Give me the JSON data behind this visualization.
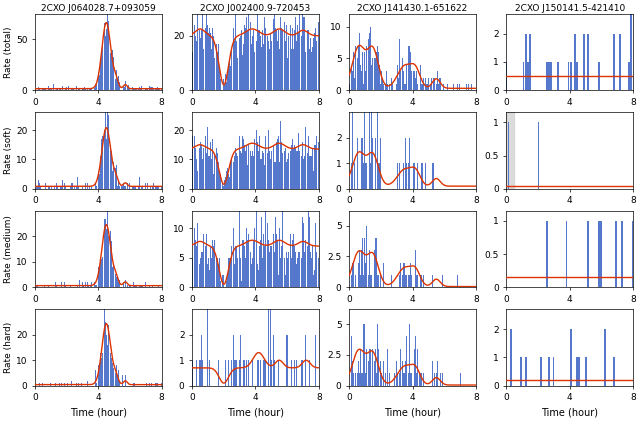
{
  "col_titles": [
    "2CXO J064028.7+093059",
    "2CXO J002400.9-720453",
    "2CXO J141430.1-651622",
    "2CXO J150141.5-421410"
  ],
  "row_labels": [
    "Rate (total)",
    "Rate (soft)",
    "Rate (medium)",
    "Rate (hard)"
  ],
  "xlabel": "Time (hour)",
  "bar_color": "#5577cc",
  "line_color": "#dd3300",
  "xlim": [
    0,
    8
  ],
  "ytick_labels": [
    [
      [
        0,
        50
      ],
      [
        0,
        20
      ],
      [
        0,
        5,
        10
      ],
      [
        0,
        1,
        2
      ]
    ],
    [
      [
        0,
        10,
        20
      ],
      [
        0,
        10,
        20
      ],
      [
        0,
        1,
        2
      ],
      [
        0.0,
        0.5,
        1.0
      ]
    ],
    [
      [
        0,
        10,
        20
      ],
      [
        0,
        5,
        10
      ],
      [
        0.0,
        2.5,
        5.0
      ],
      [
        0.0,
        0.5,
        1.0
      ]
    ],
    [
      [
        0,
        10,
        20
      ],
      [
        0,
        1,
        2
      ],
      [
        0.0,
        2.5,
        5.0
      ],
      [
        0,
        1,
        2
      ]
    ]
  ],
  "ylims": [
    [
      [
        0,
        75
      ],
      [
        0,
        28
      ],
      [
        0,
        12
      ],
      [
        0,
        2.7
      ]
    ],
    [
      [
        0,
        26
      ],
      [
        0,
        26
      ],
      [
        0,
        3.0
      ],
      [
        0,
        1.15
      ]
    ],
    [
      [
        0,
        30
      ],
      [
        0,
        13
      ],
      [
        0,
        6.2
      ],
      [
        0,
        1.15
      ]
    ],
    [
      [
        0,
        30
      ],
      [
        0,
        3.0
      ],
      [
        0,
        6.2
      ],
      [
        0,
        2.7
      ]
    ]
  ]
}
